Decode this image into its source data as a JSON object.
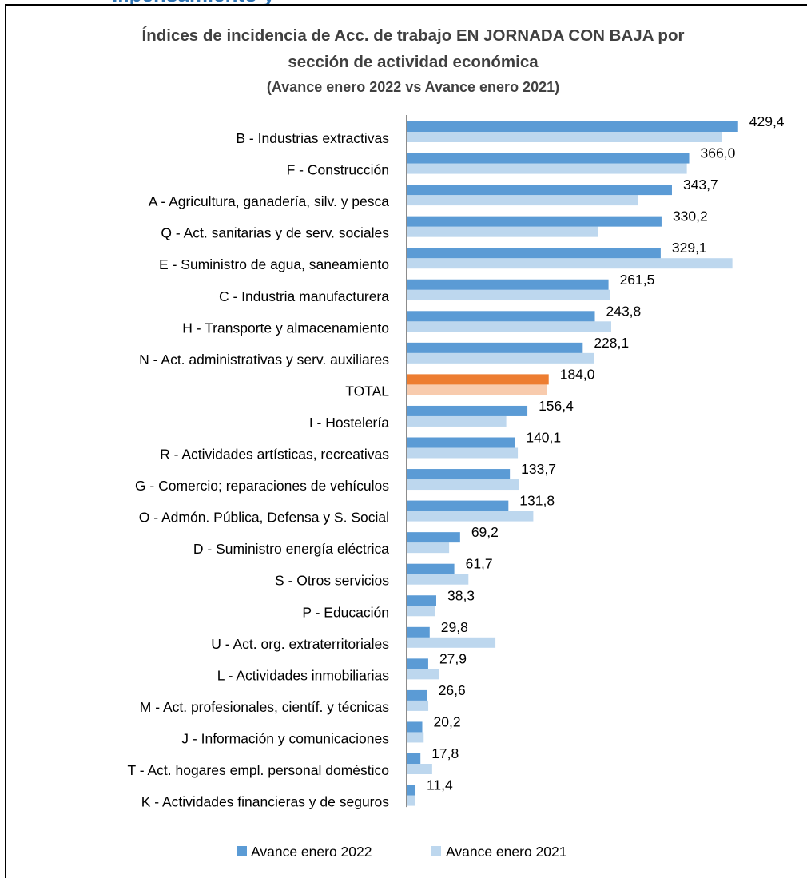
{
  "partial_header": "...pensamiento y",
  "colors": {
    "series_2022": "#5b9bd5",
    "series_2021": "#bdd7ee",
    "total_2022": "#ed7d31",
    "total_2021": "#f8cbad"
  },
  "chart_data": {
    "type": "bar",
    "orientation": "horizontal",
    "title_lines": [
      "Índices de incidencia de Acc. de trabajo EN JORNADA CON BAJA por",
      "sección de actividad económica",
      "(Avance enero 2022 vs Avance enero 2021)"
    ],
    "categories": [
      "B - Industrias extractivas",
      "F - Construcción",
      "A - Agricultura, ganadería, silv. y pesca",
      "Q - Act. sanitarias y de serv. sociales",
      "E - Suministro de agua, saneamiento",
      "C - Industria manufacturera",
      "H - Transporte y almacenamiento",
      "N - Act. administrativas y serv. auxiliares",
      "TOTAL",
      "I - Hostelería",
      "R - Actividades artísticas, recreativas",
      "G - Comercio; reparaciones de vehículos",
      "O - Admón. Pública, Defensa y S. Social ",
      "D - Suministro energía eléctrica",
      "S - Otros servicios",
      "P - Educación",
      "U - Act. org. extraterritoriales",
      "L - Actividades inmobiliarias",
      "M - Act. profesionales, científ. y técnicas",
      "J - Información y comunicaciones",
      "T - Act. hogares empl. personal doméstico",
      "K - Actividades financieras y de seguros"
    ],
    "series": [
      {
        "name": "Avance enero 2022",
        "values": [
          429.4,
          366.0,
          343.7,
          330.2,
          329.1,
          261.5,
          243.8,
          228.1,
          184.0,
          156.4,
          140.1,
          133.7,
          131.8,
          69.2,
          61.7,
          38.3,
          29.8,
          27.9,
          26.6,
          20.2,
          17.8,
          11.4
        ],
        "labels": [
          "429,4",
          "366,0",
          "343,7",
          "330,2",
          "329,1",
          "261,5",
          "243,8",
          "228,1",
          "184,0",
          "156,4",
          "140,1",
          "133,7",
          "131,8",
          "69,2",
          "61,7",
          "38,3",
          "29,8",
          "27,9",
          "26,6",
          "20,2",
          "17,8",
          "11,4"
        ]
      },
      {
        "name": "Avance enero 2021",
        "values": [
          408,
          363,
          300,
          248,
          422,
          264,
          265,
          243,
          182,
          129,
          144,
          145,
          164,
          55,
          80,
          37,
          115,
          42,
          28,
          22,
          33,
          11
        ]
      }
    ],
    "highlight_category": "TOTAL",
    "xlim": [
      0,
      440
    ],
    "legend_position": "bottom"
  }
}
